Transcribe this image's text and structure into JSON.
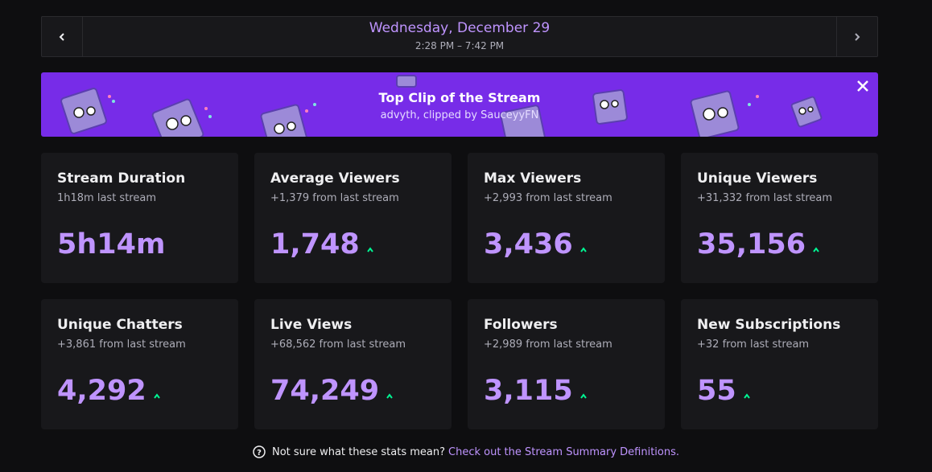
{
  "header": {
    "date": "Wednesday, December 29",
    "time_range": "2:28 PM – 7:42 PM"
  },
  "banner": {
    "title": "Top Clip of the Stream",
    "subtitle": "advyth, clipped by SauceyyFN"
  },
  "stats": [
    {
      "title": "Stream Duration",
      "change": "1h18m last stream",
      "value": "5h14m"
    },
    {
      "title": "Average Viewers",
      "change": "+1,379 from last stream",
      "value": "1,748"
    },
    {
      "title": "Max Viewers",
      "change": "+2,993 from last stream",
      "value": "3,436"
    },
    {
      "title": "Unique Viewers",
      "change": "+31,332 from last stream",
      "value": "35,156"
    },
    {
      "title": "Unique Chatters",
      "change": "+3,861 from last stream",
      "value": "4,292"
    },
    {
      "title": "Live Views",
      "change": "+68,562 from last stream",
      "value": "74,249"
    },
    {
      "title": "Followers",
      "change": "+2,989 from last stream",
      "value": "3,115"
    },
    {
      "title": "New Subscriptions",
      "change": "+32 from last stream",
      "value": "55"
    }
  ],
  "footer": {
    "question": "Not sure what these stats mean?",
    "link": "Check out the Stream Summary Definitions."
  }
}
